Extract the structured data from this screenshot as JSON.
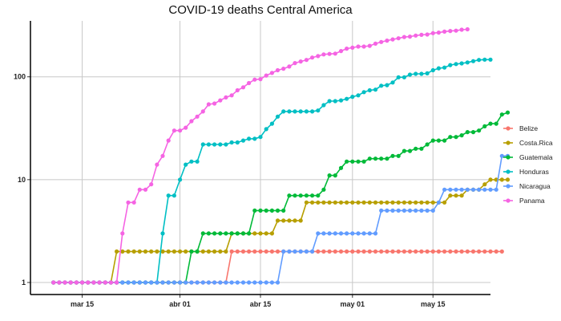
{
  "chart_data": {
    "type": "line",
    "title": "COVID-19 deaths Central America",
    "xlabel": "",
    "ylabel": "",
    "y_scale": "log10",
    "ylim": [
      1,
      350
    ],
    "x_range": [
      "2020-03-06",
      "2020-05-25"
    ],
    "x_ticks": [
      {
        "date": "2020-03-15",
        "label": "mar 15"
      },
      {
        "date": "2020-04-01",
        "label": "abr 01"
      },
      {
        "date": "2020-04-15",
        "label": "abr 15"
      },
      {
        "date": "2020-05-01",
        "label": "may 01"
      },
      {
        "date": "2020-05-15",
        "label": "may 15"
      }
    ],
    "y_ticks": [
      {
        "value": 1,
        "label": "1"
      },
      {
        "value": 10,
        "label": "10"
      },
      {
        "value": 100,
        "label": "100"
      }
    ],
    "grid": true,
    "legend_position": "right",
    "start_date": "2020-03-10",
    "series": [
      {
        "name": "Belize",
        "color": "#F8766D",
        "values": [
          1,
          1,
          1,
          1,
          1,
          1,
          1,
          1,
          1,
          1,
          1,
          1,
          1,
          1,
          1,
          1,
          1,
          1,
          1,
          1,
          1,
          1,
          1,
          1,
          1,
          1,
          1,
          1,
          1,
          1,
          1,
          2,
          2,
          2,
          2,
          2,
          2,
          2,
          2,
          2,
          2,
          2,
          2,
          2,
          2,
          2,
          2,
          2,
          2,
          2,
          2,
          2,
          2,
          2,
          2,
          2,
          2,
          2,
          2,
          2,
          2,
          2,
          2,
          2,
          2,
          2,
          2,
          2,
          2,
          2,
          2,
          2,
          2,
          2,
          2,
          2,
          2,
          2,
          2
        ]
      },
      {
        "name": "Costa.Rica",
        "color": "#B79F00",
        "values": [
          1,
          1,
          1,
          1,
          1,
          1,
          1,
          1,
          1,
          1,
          1,
          2,
          2,
          2,
          2,
          2,
          2,
          2,
          2,
          2,
          2,
          2,
          2,
          2,
          2,
          2,
          2,
          2,
          2,
          2,
          2,
          3,
          3,
          3,
          3,
          3,
          3,
          3,
          3,
          4,
          4,
          4,
          4,
          4,
          6,
          6,
          6,
          6,
          6,
          6,
          6,
          6,
          6,
          6,
          6,
          6,
          6,
          6,
          6,
          6,
          6,
          6,
          6,
          6,
          6,
          6,
          6,
          6,
          6,
          7,
          7,
          7,
          8,
          8,
          8,
          9,
          10,
          10,
          10,
          10
        ]
      },
      {
        "name": "Guatemala",
        "color": "#00BA38",
        "values": [
          1,
          1,
          1,
          1,
          1,
          1,
          1,
          1,
          1,
          1,
          1,
          1,
          1,
          1,
          1,
          1,
          1,
          1,
          1,
          1,
          1,
          1,
          1,
          1,
          2,
          2,
          3,
          3,
          3,
          3,
          3,
          3,
          3,
          3,
          3,
          5,
          5,
          5,
          5,
          5,
          5,
          7,
          7,
          7,
          7,
          7,
          7,
          8,
          11,
          11,
          13,
          15,
          15,
          15,
          15,
          16,
          16,
          16,
          16,
          17,
          17,
          19,
          19,
          20,
          20,
          22,
          24,
          24,
          24,
          26,
          26,
          27,
          29,
          29,
          30,
          33,
          35,
          35,
          43,
          45
        ]
      },
      {
        "name": "Honduras",
        "color": "#00BFC4",
        "values": [
          1,
          1,
          1,
          1,
          1,
          1,
          1,
          1,
          1,
          1,
          1,
          1,
          1,
          1,
          1,
          1,
          1,
          1,
          1,
          3,
          7,
          7,
          10,
          14,
          15,
          15,
          22,
          22,
          22,
          22,
          22,
          23,
          23,
          24,
          25,
          25,
          26,
          31,
          35,
          41,
          46,
          46,
          46,
          46,
          46,
          46,
          47,
          53,
          58,
          58,
          59,
          61,
          64,
          66,
          71,
          74,
          75,
          82,
          83,
          88,
          99,
          99,
          105,
          107,
          107,
          108,
          116,
          121,
          123,
          130,
          133,
          135,
          138,
          142,
          146,
          147,
          147
        ]
      },
      {
        "name": "Nicaragua",
        "color": "#619CFF",
        "values": [
          1,
          1,
          1,
          1,
          1,
          1,
          1,
          1,
          1,
          1,
          1,
          1,
          1,
          1,
          1,
          1,
          1,
          1,
          1,
          1,
          1,
          1,
          1,
          1,
          1,
          1,
          1,
          1,
          1,
          1,
          1,
          1,
          1,
          1,
          1,
          1,
          1,
          1,
          1,
          1,
          2,
          2,
          2,
          2,
          2,
          2,
          3,
          3,
          3,
          3,
          3,
          3,
          3,
          3,
          3,
          3,
          3,
          5,
          5,
          5,
          5,
          5,
          5,
          5,
          5,
          5,
          5,
          6,
          8,
          8,
          8,
          8,
          8,
          8,
          8,
          8,
          8,
          8,
          17,
          17
        ]
      },
      {
        "name": "Panama",
        "color": "#F564E3",
        "values": [
          1,
          1,
          1,
          1,
          1,
          1,
          1,
          1,
          1,
          1,
          1,
          1,
          3,
          6,
          6,
          8,
          8,
          9,
          14,
          17,
          24,
          30,
          30,
          32,
          37,
          41,
          46,
          54,
          55,
          59,
          63,
          66,
          74,
          79,
          87,
          94,
          95,
          103,
          109,
          116,
          120,
          126,
          136,
          141,
          146,
          154,
          159,
          165,
          167,
          168,
          178,
          188,
          192,
          197,
          197,
          200,
          210,
          218,
          225,
          231,
          237,
          244,
          246,
          252,
          256,
          258,
          266,
          269,
          275,
          279,
          281,
          287,
          290
        ]
      }
    ]
  }
}
